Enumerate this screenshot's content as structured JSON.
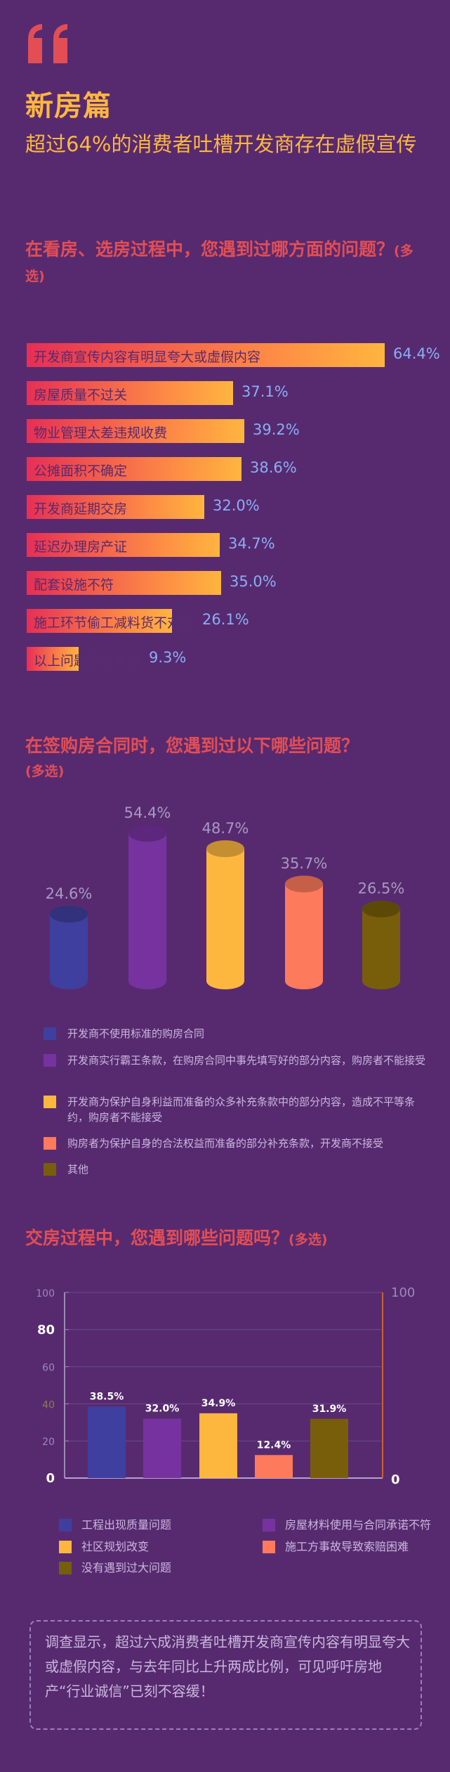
{
  "header": {
    "title": "新房篇",
    "subtitle": "超过64%的消费者吐槽开发商存在虚假宣传",
    "quote_color": "#e24e54",
    "title_color": "#fdb73f"
  },
  "section1": {
    "question": "在看房、选房过程中，您遇到过哪方面的问题？",
    "note": "(多选)"
  },
  "section2": {
    "question": "在签购房合同时，您遇到过以下哪些问题？",
    "note": "(多选)"
  },
  "section3": {
    "question": "交房过程中，您遇到哪些问题吗？",
    "note": "(多选)"
  },
  "chart_data": [
    {
      "type": "bar",
      "orientation": "horizontal",
      "categories": [
        "开发商宣传内容有明显夸大或虚假内容",
        "房屋质量不过关",
        "物业管理太差违规收费",
        "公摊面积不确定",
        "开发商延期交房",
        "延迟办理房产证",
        "配套设施不符",
        "施工环节偷工减料货不对板",
        "以上问题都没有过"
      ],
      "values": [
        64.4,
        37.1,
        39.2,
        38.6,
        32.0,
        34.7,
        35.0,
        26.1,
        9.3
      ],
      "value_labels": [
        "64.4%",
        "37.1%",
        "39.2%",
        "38.6%",
        "32.0%",
        "34.7%",
        "35.0%",
        "26.1%",
        "9.3%"
      ],
      "bar_gradient": [
        "#e62f55",
        "#fe8d45",
        "#ffb53f"
      ]
    },
    {
      "type": "bar",
      "style": "cylinder",
      "values": [
        24.6,
        54.4,
        48.7,
        35.7,
        26.5
      ],
      "value_labels": [
        "24.6%",
        "54.4%",
        "48.7%",
        "35.7%",
        "26.5%"
      ],
      "colors": [
        "#3f3f9f",
        "#76339f",
        "#fdb73f",
        "#fe7a5c",
        "#785e0a"
      ],
      "legend": [
        {
          "label": "开发商不使用标准的购房合同",
          "color": "#3f3f9f"
        },
        {
          "label": "开发商实行霸王条款，在购房合同中事先填写好的部分内容，购房者不能接受",
          "color": "#76339f"
        },
        {
          "label": "开发商为保护自身利益而准备的众多补充条款中的部分内容，造成不平等条约，购房者不能接受",
          "color": "#fdb73f"
        },
        {
          "label": "购房者为保护自身的合法权益而准备的部分补充条款，开发商不接受",
          "color": "#fe7a5c"
        },
        {
          "label": "其他",
          "color": "#785e0a"
        }
      ]
    },
    {
      "type": "bar",
      "categories": [
        "工程出现质量问题",
        "房屋材料使用与合同承诺不符",
        "社区规划改变",
        "施工方事故导致索赔困难",
        "没有遇到过大问题"
      ],
      "values": [
        38.5,
        32.0,
        34.9,
        12.4,
        31.9
      ],
      "value_labels": [
        "38.5%",
        "32.0%",
        "34.9%",
        "12.4%",
        "31.9%"
      ],
      "colors": [
        "#3f3f9f",
        "#76339f",
        "#fdb73f",
        "#fe7a5c",
        "#785e0a"
      ],
      "ylim": [
        0,
        100
      ],
      "yticks": [
        "0",
        "20",
        "40",
        "60",
        "80",
        "100"
      ],
      "right_axis_ticks": [
        "0",
        "100"
      ],
      "grid": true
    }
  ],
  "conclusion": "调查显示，超过六成消费者吐槽开发商宣传内容有明显夸大或虚假内容，与去年同比上升两成比例，可见呼吁房地产“行业诚信”已刻不容缓！"
}
